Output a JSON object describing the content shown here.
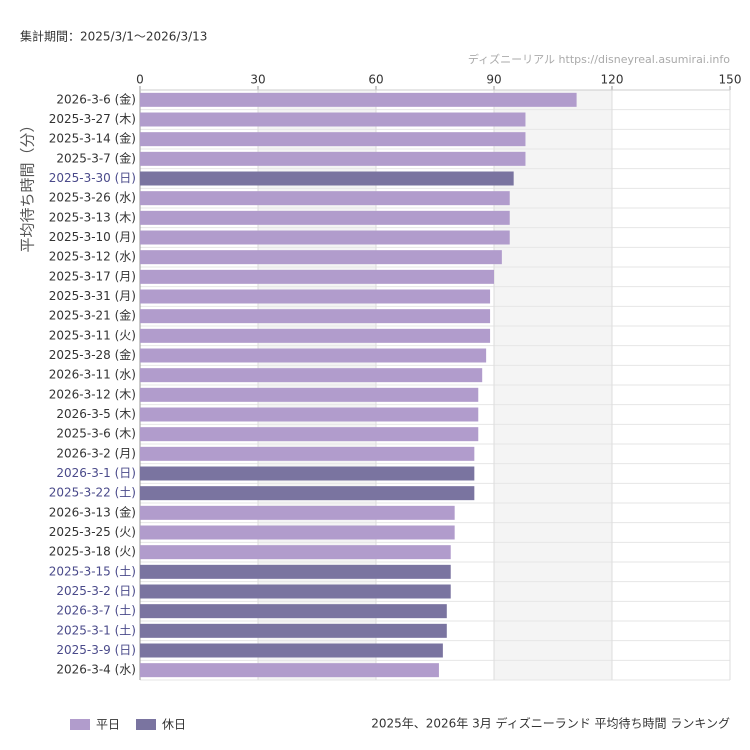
{
  "header": {
    "period": "集計期間：2025/3/1〜2026/3/13",
    "credit": "ディズニーリアル https://disneyreal.asumirai.info"
  },
  "chart_data": {
    "type": "bar",
    "orientation": "horizontal",
    "title": "2025年、2026年 3月 ディズニーランド 平均待ち時間 ランキング",
    "y_label": "平均待ち時間（分）",
    "categories": [
      "2026-3-6 (金)",
      "2025-3-27 (木)",
      "2025-3-14 (金)",
      "2025-3-7 (金)",
      "2025-3-30 (日)",
      "2025-3-26 (水)",
      "2025-3-13 (木)",
      "2025-3-10 (月)",
      "2025-3-12 (水)",
      "2025-3-17 (月)",
      "2025-3-31 (月)",
      "2025-3-21 (金)",
      "2025-3-11 (火)",
      "2025-3-28 (金)",
      "2026-3-11 (水)",
      "2026-3-12 (木)",
      "2026-3-5 (木)",
      "2025-3-6 (木)",
      "2026-3-2 (月)",
      "2026-3-1 (日)",
      "2025-3-22 (土)",
      "2026-3-13 (金)",
      "2025-3-25 (火)",
      "2025-3-18 (火)",
      "2025-3-15 (土)",
      "2025-3-2 (日)",
      "2026-3-7 (土)",
      "2025-3-1 (土)",
      "2025-3-9 (日)",
      "2026-3-4 (水)"
    ],
    "series": [
      {
        "name": "平日",
        "color": "#b19ccc",
        "label_color": "#333333",
        "values": [
          111,
          98,
          98,
          98,
          null,
          94,
          94,
          94,
          92,
          90,
          89,
          89,
          89,
          88,
          87,
          86,
          86,
          86,
          85,
          null,
          null,
          80,
          80,
          79,
          null,
          null,
          null,
          null,
          null,
          76
        ]
      },
      {
        "name": "休日",
        "color": "#7a74a0",
        "label_color": "#4a4a8a",
        "values": [
          null,
          null,
          null,
          null,
          95,
          null,
          null,
          null,
          null,
          null,
          null,
          null,
          null,
          null,
          null,
          null,
          null,
          null,
          null,
          85,
          85,
          null,
          null,
          null,
          79,
          79,
          78,
          78,
          77,
          null
        ]
      }
    ],
    "xlim": [
      0,
      150
    ],
    "xticks": [
      0,
      30,
      60,
      90,
      120,
      150
    ],
    "grid": true
  }
}
